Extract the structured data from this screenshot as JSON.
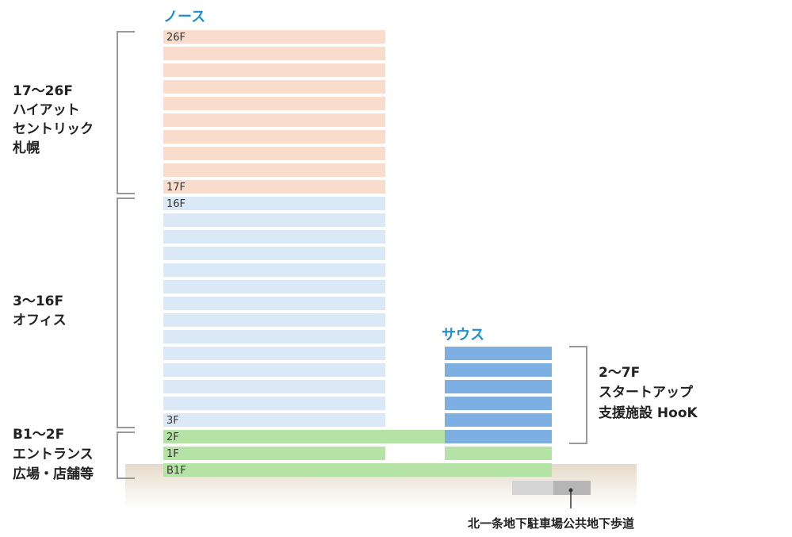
{
  "colors": {
    "hotel": "#f9dccb",
    "office": "#dbe8f6",
    "entrance": "#b5e3a6",
    "startup": "#7eafe2",
    "ground": "#ece3d6",
    "bracket": "#999999",
    "tower_name": "#1e8fd0",
    "walkway_light": "#d4d4d4",
    "walkway_dark": "#b5b5b5"
  },
  "north": {
    "name": "ノース",
    "floors": [
      "26F",
      "",
      "",
      "",
      "",
      "",
      "",
      "",
      "",
      "17F",
      "16F",
      "",
      "",
      "",
      "",
      "",
      "",
      "",
      "",
      "",
      "",
      "",
      "",
      "3F",
      "2F",
      "1F",
      "B1F"
    ]
  },
  "south": {
    "name": "サウス"
  },
  "zones": [
    {
      "lines": [
        "17～26F",
        "ハイアット",
        "セントリック",
        "札幌"
      ]
    },
    {
      "lines": [
        "3～16F",
        "オフィス"
      ]
    },
    {
      "lines": [
        "B1～2F",
        "エントランス",
        "広場・店舗等"
      ]
    }
  ],
  "startup_zone": {
    "lines": [
      "2～7F",
      "スタートアップ",
      "支援施設 HooK"
    ]
  },
  "walkway": {
    "label": "北一条地下駐車場公共地下歩道"
  }
}
